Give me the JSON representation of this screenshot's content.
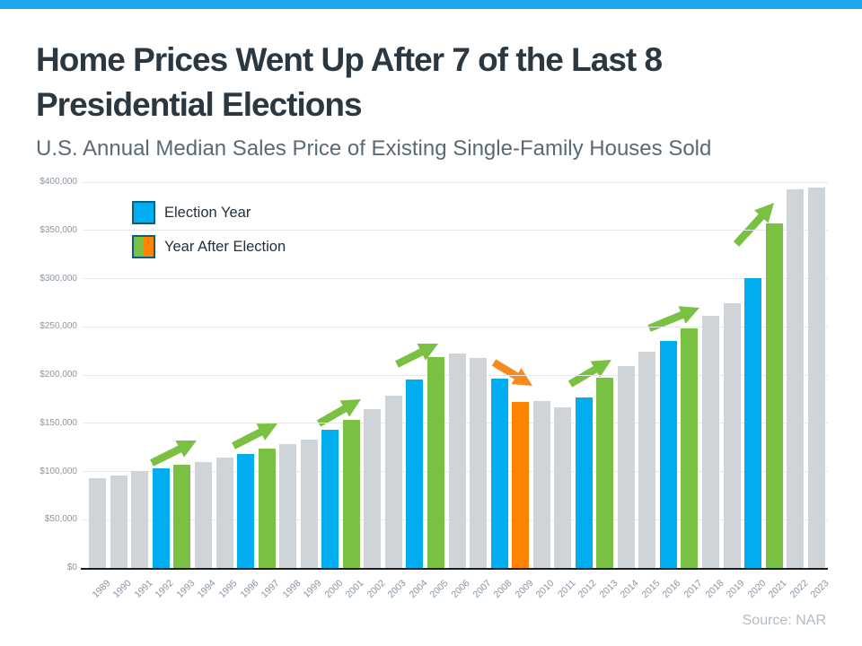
{
  "header": {
    "title_line1": "Home Prices Went Up After 7 of the Last 8",
    "title_line2": "Presidential Elections",
    "subtitle": "U.S. Annual Median Sales Price of Existing Single-Family Houses Sold"
  },
  "legend": {
    "items": [
      {
        "label": "Election Year",
        "swatch": "solid-blue"
      },
      {
        "label": "Year After Election",
        "swatch": "split-green-orange"
      }
    ]
  },
  "footer": {
    "source": "Source: NAR"
  },
  "theme": {
    "accent_bar_color": "#1BA9EB",
    "title_color": "#2B3842",
    "subtitle_color": "#5A6A75",
    "gridline_color": "#E6E9EB",
    "axis_line_color": "#1E1E1E",
    "tick_label_color": "#8494A5",
    "source_color": "#B2BCC4",
    "legend_swatch_border": "#0D5E7C"
  },
  "chart_data": {
    "type": "bar",
    "title": "U.S. Annual Median Sales Price of Existing Single-Family Houses Sold",
    "categories": [
      1989,
      1990,
      1991,
      1992,
      1993,
      1994,
      1995,
      1996,
      1997,
      1998,
      1999,
      2000,
      2001,
      2002,
      2003,
      2004,
      2005,
      2006,
      2007,
      2008,
      2009,
      2010,
      2011,
      2012,
      2013,
      2014,
      2015,
      2016,
      2017,
      2018,
      2019,
      2020,
      2021,
      2022,
      2023
    ],
    "values": [
      93100,
      95500,
      100300,
      103700,
      106800,
      109900,
      114600,
      118200,
      124100,
      128400,
      133300,
      143600,
      153100,
      165000,
      178800,
      195200,
      219000,
      221900,
      217900,
      196600,
      172100,
      173100,
      166200,
      177200,
      197400,
      208900,
      223900,
      235500,
      248800,
      261600,
      274600,
      300200,
      357100,
      392800,
      394300
    ],
    "roles": [
      "other",
      "other",
      "other",
      "election",
      "after_up",
      "other",
      "other",
      "election",
      "after_up",
      "other",
      "other",
      "election",
      "after_up",
      "other",
      "other",
      "election",
      "after_up",
      "other",
      "other",
      "election",
      "after_down",
      "other",
      "other",
      "election",
      "after_up",
      "other",
      "other",
      "election",
      "after_up",
      "other",
      "other",
      "election",
      "after_up",
      "other",
      "other"
    ],
    "colors": {
      "election": "#00AEEF",
      "after_up": "#7AC143",
      "after_down": "#FF8500",
      "other": "#CED4D8"
    },
    "ylim": [
      0,
      400000
    ],
    "ytick_step": 50000,
    "ytick_labels": [
      "$0",
      "$50,000",
      "$100,000",
      "$150,000",
      "$200,000",
      "$250,000",
      "$300,000",
      "$350,000",
      "$400,000"
    ],
    "grid": "horizontal",
    "legend_position": "top-left",
    "annotations": [
      {
        "from": 1992,
        "to": 1993,
        "direction": "up",
        "color": "#7AC143",
        "x1": 169,
        "y1": 516,
        "x2": 219,
        "y2": 491
      },
      {
        "from": 1996,
        "to": 1997,
        "direction": "up",
        "color": "#7AC143",
        "x1": 260,
        "y1": 497,
        "x2": 309,
        "y2": 472
      },
      {
        "from": 2000,
        "to": 2001,
        "direction": "up",
        "color": "#7AC143",
        "x1": 355,
        "y1": 472,
        "x2": 402,
        "y2": 445
      },
      {
        "from": 2004,
        "to": 2005,
        "direction": "up",
        "color": "#7AC143",
        "x1": 442,
        "y1": 406,
        "x2": 488,
        "y2": 383
      },
      {
        "from": 2008,
        "to": 2009,
        "direction": "down",
        "color": "#F68B1F",
        "x1": 550,
        "y1": 404,
        "x2": 593,
        "y2": 430
      },
      {
        "from": 2012,
        "to": 2013,
        "direction": "up",
        "color": "#7AC143",
        "x1": 635,
        "y1": 428,
        "x2": 681,
        "y2": 401
      },
      {
        "from": 2016,
        "to": 2017,
        "direction": "up",
        "color": "#7AC143",
        "x1": 723,
        "y1": 366,
        "x2": 779,
        "y2": 343
      },
      {
        "from": 2020,
        "to": 2021,
        "direction": "up",
        "color": "#7AC143",
        "x1": 820,
        "y1": 272,
        "x2": 862,
        "y2": 226
      }
    ]
  }
}
